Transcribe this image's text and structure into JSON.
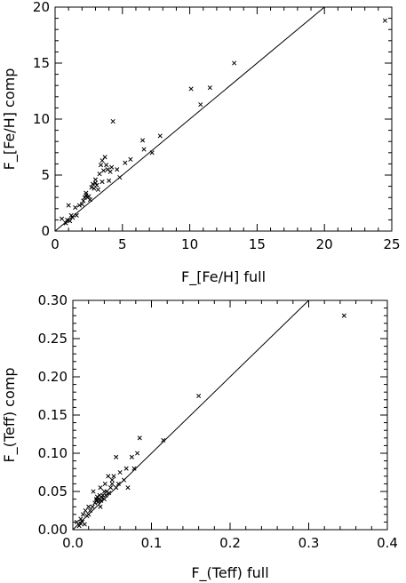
{
  "chart_data": [
    {
      "type": "scatter",
      "xlabel": "F_[Fe/H] full",
      "ylabel": "F_[Fe/H] comp",
      "xlim": [
        0,
        25
      ],
      "ylim": [
        0,
        20
      ],
      "xticks": [
        "0",
        "5",
        "10",
        "15",
        "20",
        "25"
      ],
      "yticks": [
        "0",
        "5",
        "10",
        "15",
        "20"
      ],
      "grid": false,
      "reference_line": {
        "x": [
          0,
          20
        ],
        "y": [
          0,
          20
        ]
      },
      "x": [
        0.5,
        0.8,
        0.9,
        1.0,
        1.1,
        1.2,
        1.3,
        1.5,
        1.6,
        1.8,
        2.0,
        2.1,
        2.2,
        2.3,
        2.3,
        2.4,
        2.5,
        2.6,
        2.7,
        2.8,
        2.9,
        3.0,
        3.0,
        3.1,
        3.2,
        3.3,
        3.4,
        3.5,
        3.5,
        3.6,
        3.7,
        3.8,
        3.9,
        4.0,
        4.1,
        4.2,
        4.3,
        4.6,
        4.8,
        5.2,
        5.6,
        6.5,
        6.6,
        7.2,
        7.8,
        10.1,
        10.8,
        11.5,
        13.3,
        24.5
      ],
      "y": [
        1.1,
        0.7,
        1.0,
        2.3,
        0.9,
        1.4,
        1.2,
        2.1,
        1.4,
        2.3,
        2.4,
        2.7,
        3.0,
        3.2,
        3.4,
        3.0,
        3.1,
        2.8,
        3.9,
        4.2,
        3.8,
        4.6,
        4.3,
        4.1,
        3.7,
        5.1,
        5.9,
        6.3,
        4.4,
        5.4,
        6.6,
        5.9,
        5.5,
        4.5,
        5.3,
        5.7,
        9.8,
        5.5,
        4.8,
        6.1,
        6.4,
        8.1,
        7.3,
        7.0,
        8.5,
        12.7,
        11.3,
        12.8,
        15.0,
        18.8
      ]
    },
    {
      "type": "scatter",
      "xlabel": "F_(Teff) full",
      "ylabel": "F_(Teff) comp",
      "xlim": [
        0,
        0.4
      ],
      "ylim": [
        0,
        0.3
      ],
      "xticks": [
        "0.0",
        "0.1",
        "0.2",
        "0.3",
        "0.4"
      ],
      "yticks": [
        "0.00",
        "0.05",
        "0.10",
        "0.15",
        "0.20",
        "0.25",
        "0.30"
      ],
      "grid": false,
      "reference_line": {
        "x": [
          0,
          0.3
        ],
        "y": [
          0,
          0.3
        ]
      },
      "x": [
        0.005,
        0.008,
        0.01,
        0.01,
        0.012,
        0.013,
        0.015,
        0.016,
        0.018,
        0.02,
        0.02,
        0.022,
        0.025,
        0.026,
        0.028,
        0.03,
        0.03,
        0.031,
        0.032,
        0.033,
        0.034,
        0.035,
        0.035,
        0.036,
        0.037,
        0.038,
        0.04,
        0.04,
        0.041,
        0.042,
        0.043,
        0.045,
        0.046,
        0.048,
        0.05,
        0.05,
        0.052,
        0.055,
        0.055,
        0.058,
        0.06,
        0.065,
        0.068,
        0.07,
        0.075,
        0.078,
        0.082,
        0.085,
        0.115,
        0.16,
        0.345
      ],
      "y": [
        0.01,
        0.005,
        0.008,
        0.014,
        0.01,
        0.02,
        0.007,
        0.025,
        0.018,
        0.02,
        0.03,
        0.025,
        0.03,
        0.05,
        0.035,
        0.038,
        0.04,
        0.043,
        0.036,
        0.04,
        0.045,
        0.03,
        0.055,
        0.038,
        0.042,
        0.045,
        0.04,
        0.05,
        0.06,
        0.045,
        0.05,
        0.07,
        0.048,
        0.055,
        0.06,
        0.065,
        0.07,
        0.055,
        0.095,
        0.06,
        0.075,
        0.065,
        0.08,
        0.055,
        0.095,
        0.08,
        0.1,
        0.12,
        0.117,
        0.175,
        0.28
      ]
    }
  ]
}
